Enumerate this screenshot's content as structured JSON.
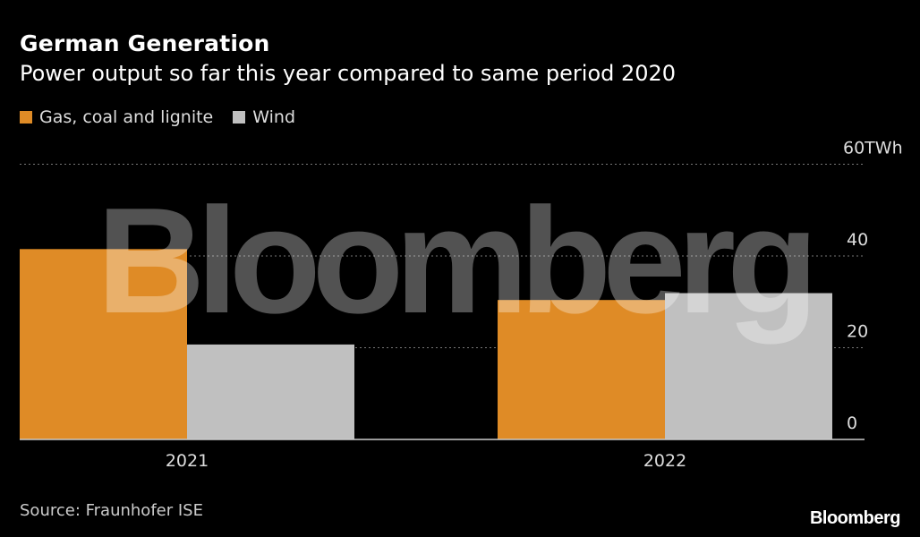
{
  "chart_data": {
    "type": "bar",
    "title": "German Generation",
    "subtitle": "Power output so far this year compared to same period 2020",
    "categories": [
      "2021",
      "2022"
    ],
    "series": [
      {
        "name": "Gas, coal and lignite",
        "color": "#df8b26",
        "values": [
          41.5,
          30.4
        ]
      },
      {
        "name": "Wind",
        "color": "#c0c0c0",
        "values": [
          20.7,
          31.9
        ]
      }
    ],
    "ylim": [
      0,
      60
    ],
    "yticks": [
      0,
      20,
      40,
      60
    ],
    "ytick_labels": [
      "0",
      "20",
      "40",
      "60TWh"
    ],
    "ylabel": "TWh",
    "xlabel": "",
    "grid": true,
    "legend_position": "top-left"
  },
  "source": "Source: Fraunhofer ISE",
  "brand": "Bloomberg",
  "watermark": "Bloomberg"
}
